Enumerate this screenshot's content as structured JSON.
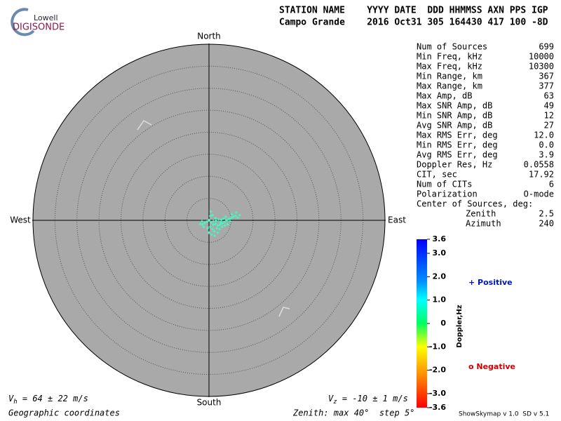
{
  "logo": {
    "top": "Lowell",
    "bottom": "DIGISONDE"
  },
  "header": {
    "columns": "STATION NAME    YYYY DATE  DDD HHMMSS AXN PPS IGP",
    "values": "Campo Grande    2016 Oct31 305 164430 417 100 -8D"
  },
  "directions": {
    "north": "North",
    "south": "South",
    "west": "West",
    "east": "East"
  },
  "table": {
    "rows": [
      [
        "Num of Sources",
        "699"
      ],
      [
        "Min Freq, kHz",
        "10000"
      ],
      [
        "Max Freq, kHz",
        "10300"
      ],
      [
        "Min Range, km",
        "367"
      ],
      [
        "Max Range, km",
        "377"
      ],
      [
        "Max Amp, dB",
        "63"
      ],
      [
        "Max SNR Amp, dB",
        "49"
      ],
      [
        "Min SNR Amp, dB",
        "12"
      ],
      [
        "Avg SNR Amp, dB",
        "27"
      ],
      [
        "Max RMS Err, deg",
        "12.0"
      ],
      [
        "Min RMS Err, deg",
        "0.0"
      ],
      [
        "Avg RMS Err, deg",
        "3.9"
      ],
      [
        "Doppler Res, Hz",
        "0.0558"
      ],
      [
        "CIT, sec",
        "17.92"
      ],
      [
        "Num of CITs",
        "6"
      ],
      [
        "Polarization",
        "O-mode"
      ],
      [
        "Center of Sources, deg:"
      ],
      [
        "Zenith",
        "2.5"
      ],
      [
        "Azimuth",
        "240"
      ]
    ]
  },
  "colorbar": {
    "title": "Doppler,Hz",
    "lim": [
      -3.6,
      3.6
    ],
    "ticks": [
      3.6,
      {
        "value": 3.0,
        "label": "3.0"
      },
      {
        "value": 2.0,
        "label": "2.0"
      },
      {
        "value": 1.0,
        "label": "1.0"
      },
      0,
      {
        "value": -1.0,
        "label": "-1.0"
      },
      {
        "value": -2.0,
        "label": "-2.0"
      },
      {
        "value": -3.0,
        "label": "-3.0"
      },
      -3.6
    ],
    "positive": "+ Positive",
    "negative": "o Negative"
  },
  "velocity": {
    "horizontal": {
      "symbol": "V",
      "subscript": "h",
      "text": " = 64 ± 22 m/s"
    },
    "vertical": {
      "symbol": "V",
      "subscript": "z",
      "text": " = -10 ± 1 m/s"
    }
  },
  "footer": {
    "coordinates": "Geographic coordinates",
    "zenith": "Zenith: max 40°  step 5°",
    "version": "ShowSkymap v 1.0  SD v 5.1"
  },
  "sources": {
    "type": "scatter",
    "color": "#3cffc4",
    "max_zenith": 40,
    "step": 5,
    "points": [
      [
        0.5,
        -0.5
      ],
      [
        1,
        -1
      ],
      [
        1.5,
        -0.8
      ],
      [
        2,
        -1.2
      ],
      [
        2.5,
        -1
      ],
      [
        3,
        -0.7
      ],
      [
        3.5,
        -0.4
      ],
      [
        4,
        0
      ],
      [
        4.5,
        0.3
      ],
      [
        5,
        0.5
      ],
      [
        5.5,
        0.8
      ],
      [
        6,
        1
      ],
      [
        6.5,
        0.6
      ],
      [
        7,
        1.2
      ],
      [
        0,
        0
      ],
      [
        -0.5,
        -0.3
      ],
      [
        -1,
        -0.6
      ],
      [
        -1.5,
        -1
      ],
      [
        -2,
        -0.8
      ],
      [
        0.2,
        -1.5
      ],
      [
        0.8,
        -2
      ],
      [
        1.2,
        -2.5
      ],
      [
        1.8,
        -1.8
      ],
      [
        2.4,
        -2
      ],
      [
        3,
        -1.5
      ],
      [
        3.6,
        -1.2
      ],
      [
        4.2,
        -0.9
      ],
      [
        4.8,
        -0.2
      ],
      [
        0.3,
        1
      ],
      [
        0.8,
        1.2
      ],
      [
        1.5,
        0.5
      ],
      [
        2.2,
        0.2
      ],
      [
        2.8,
        0.1
      ],
      [
        3.3,
        0.4
      ],
      [
        0,
        -2.8
      ],
      [
        0.6,
        -3.2
      ],
      [
        -0.3,
        -1.8
      ],
      [
        -1.2,
        -1.5
      ],
      [
        1,
        -0.2
      ],
      [
        1.6,
        -0.1
      ],
      [
        2.6,
        -0.4
      ],
      [
        3.8,
        0.8
      ],
      [
        5.2,
        1.4
      ],
      [
        6.2,
        1.8
      ],
      [
        -1.6,
        -0.2
      ],
      [
        0.4,
        2
      ],
      [
        1.3,
        -3.5
      ],
      [
        2,
        -2.8
      ]
    ]
  }
}
